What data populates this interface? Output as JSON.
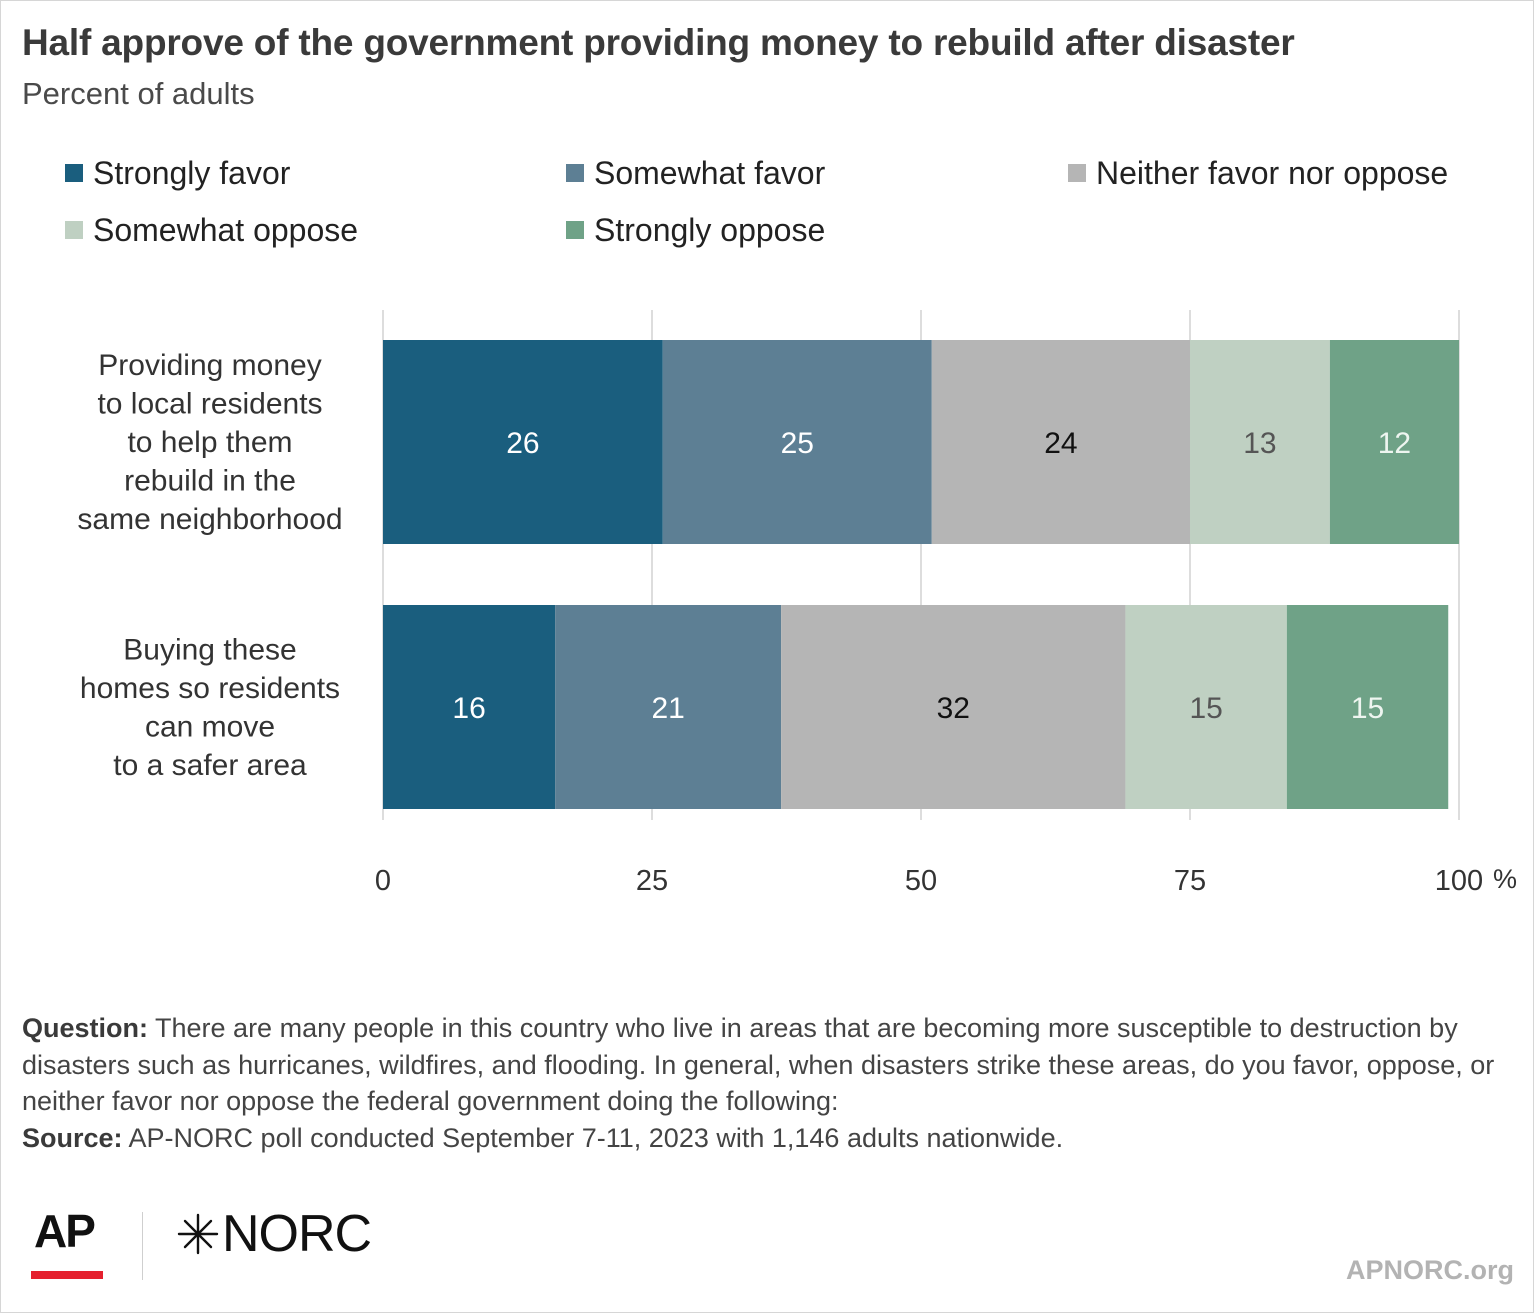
{
  "header": {
    "title": "Half approve of the government providing money to rebuild after disaster",
    "subtitle": "Percent of adults"
  },
  "legend": [
    {
      "label": "Strongly favor",
      "color": "#1a5e7e"
    },
    {
      "label": "Somewhat favor",
      "color": "#5d7f94"
    },
    {
      "label": "Neither favor nor oppose",
      "color": "#b5b5b5"
    },
    {
      "label": "Somewhat oppose",
      "color": "#bfd0c2"
    },
    {
      "label": "Strongly oppose",
      "color": "#6fa287"
    }
  ],
  "chart_data": {
    "type": "bar",
    "orientation": "horizontal",
    "stacked": true,
    "categories": [
      "Providing money to local residents to help them rebuild in the same neighborhood",
      "Buying these homes so residents can move to a safer area"
    ],
    "category_lines": [
      [
        "Providing money",
        "to local residents",
        "to help them",
        "rebuild in the",
        "same neighborhood"
      ],
      [
        "Buying these",
        "homes so residents",
        "can move",
        "to a safer area"
      ]
    ],
    "series": [
      {
        "name": "Strongly favor",
        "values": [
          26,
          16
        ],
        "color": "#1a5e7e",
        "label_color": "#ffffff"
      },
      {
        "name": "Somewhat favor",
        "values": [
          25,
          21
        ],
        "color": "#5d7f94",
        "label_color": "#ffffff"
      },
      {
        "name": "Neither favor nor oppose",
        "values": [
          24,
          32
        ],
        "color": "#b5b5b5",
        "label_color": "#111111"
      },
      {
        "name": "Somewhat oppose",
        "values": [
          13,
          15
        ],
        "color": "#bfd0c2",
        "label_color": "#555555"
      },
      {
        "name": "Strongly oppose",
        "values": [
          12,
          15
        ],
        "color": "#6fa287",
        "label_color": "#eef5f0"
      }
    ],
    "xlim": [
      0,
      100
    ],
    "xticks": [
      0,
      25,
      50,
      75,
      100
    ],
    "xunit": "%",
    "grid": true
  },
  "footnote": {
    "question_label": "Question:",
    "question_text": " There are many people in this country who live in areas that are becoming more susceptible to destruction by disasters such as hurricanes, wildfires, and flooding. In general, when disasters strike these areas, do you favor, oppose, or neither favor nor oppose the federal government doing the following:",
    "source_label": "Source:",
    "source_text": " AP-NORC poll conducted September 7-11, 2023 with 1,146 adults nationwide."
  },
  "branding": {
    "ap": "AP",
    "norc": "NORC",
    "site": "APNORC.org",
    "ap_bar_color": "#e5202e"
  }
}
